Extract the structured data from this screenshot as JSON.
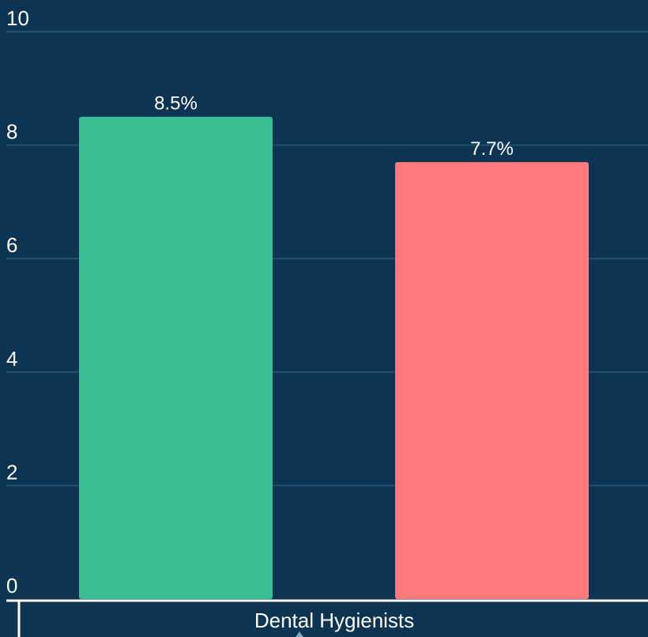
{
  "chart_data": {
    "type": "bar",
    "categories": [
      "Dental Hygienists"
    ],
    "series": [
      {
        "values": [
          8.5
        ],
        "color": "#3bbd94"
      },
      {
        "values": [
          7.7
        ],
        "color": "#ff7b7b"
      }
    ],
    "data_labels": [
      "8.5%",
      "7.7%"
    ],
    "ylim": [
      0,
      10
    ],
    "yticks": [
      0,
      2,
      4,
      6,
      8,
      10
    ],
    "grid": true,
    "background": "#0e3454",
    "gridline_color": "#22506f"
  }
}
